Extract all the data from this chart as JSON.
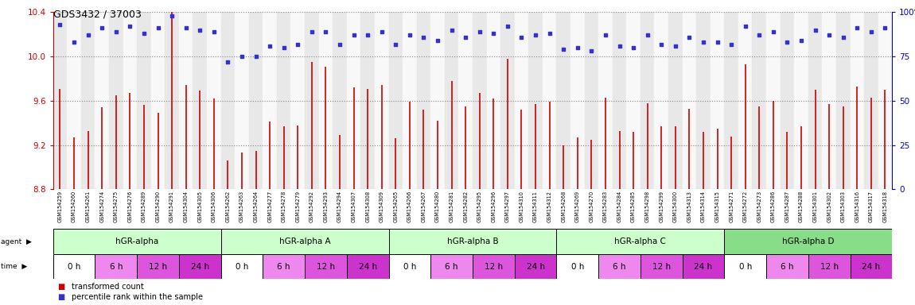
{
  "title": "GDS3432 / 37003",
  "xlabels": [
    "GSM154259",
    "GSM154260",
    "GSM154261",
    "GSM154274",
    "GSM154275",
    "GSM154276",
    "GSM154289",
    "GSM154290",
    "GSM154291",
    "GSM154304",
    "GSM154305",
    "GSM154306",
    "GSM154262",
    "GSM154263",
    "GSM154264",
    "GSM154277",
    "GSM154278",
    "GSM154279",
    "GSM154292",
    "GSM154293",
    "GSM154294",
    "GSM154307",
    "GSM154308",
    "GSM154309",
    "GSM154265",
    "GSM154266",
    "GSM154267",
    "GSM154280",
    "GSM154281",
    "GSM154282",
    "GSM154295",
    "GSM154296",
    "GSM154297",
    "GSM154310",
    "GSM154311",
    "GSM154312",
    "GSM154268",
    "GSM154269",
    "GSM154270",
    "GSM154283",
    "GSM154284",
    "GSM154285",
    "GSM154298",
    "GSM154299",
    "GSM154300",
    "GSM154313",
    "GSM154314",
    "GSM154315",
    "GSM154271",
    "GSM154272",
    "GSM154273",
    "GSM154286",
    "GSM154287",
    "GSM154288",
    "GSM154301",
    "GSM154302",
    "GSM154303",
    "GSM154316",
    "GSM154317",
    "GSM154318"
  ],
  "bar_values": [
    9.71,
    9.27,
    9.33,
    9.54,
    9.65,
    9.67,
    9.56,
    9.49,
    10.4,
    9.74,
    9.69,
    9.62,
    9.06,
    9.13,
    9.15,
    9.41,
    9.37,
    9.38,
    9.95,
    9.91,
    9.29,
    9.72,
    9.71,
    9.74,
    9.26,
    9.59,
    9.52,
    9.42,
    9.78,
    9.55,
    9.67,
    9.62,
    9.98,
    9.52,
    9.57,
    9.59,
    9.2,
    9.27,
    9.25,
    9.63,
    9.33,
    9.32,
    9.58,
    9.37,
    9.37,
    9.53,
    9.32,
    9.35,
    9.28,
    9.93,
    9.55,
    9.6,
    9.32,
    9.37,
    9.7,
    9.57,
    9.55,
    9.73,
    9.63,
    9.7
  ],
  "percentile_values": [
    93,
    83,
    87,
    91,
    89,
    92,
    88,
    91,
    98,
    91,
    90,
    89,
    72,
    75,
    75,
    81,
    80,
    82,
    89,
    89,
    82,
    87,
    87,
    89,
    82,
    87,
    86,
    84,
    90,
    86,
    89,
    88,
    92,
    86,
    87,
    88,
    79,
    80,
    78,
    87,
    81,
    80,
    87,
    82,
    81,
    86,
    83,
    83,
    82,
    92,
    87,
    89,
    83,
    84,
    90,
    87,
    86,
    91,
    89,
    91
  ],
  "ymin": 8.8,
  "ymax": 10.4,
  "ylim_left": [
    8.8,
    10.4
  ],
  "ylim_right": [
    0,
    100
  ],
  "yticks_left": [
    8.8,
    9.2,
    9.6,
    10.0,
    10.4
  ],
  "yticks_right": [
    0,
    25,
    50,
    75,
    100
  ],
  "bar_color": "#cc0000",
  "dot_color": "#3333cc",
  "agent_groups": [
    {
      "label": "hGR-alpha",
      "start": 0,
      "end": 12,
      "color": "#ccffcc"
    },
    {
      "label": "hGR-alpha A",
      "start": 12,
      "end": 24,
      "color": "#ccffcc"
    },
    {
      "label": "hGR-alpha B",
      "start": 24,
      "end": 36,
      "color": "#ccffcc"
    },
    {
      "label": "hGR-alpha C",
      "start": 36,
      "end": 48,
      "color": "#ccffcc"
    },
    {
      "label": "hGR-alpha D",
      "start": 48,
      "end": 60,
      "color": "#88dd88"
    }
  ],
  "time_label_list": [
    "0 h",
    "6 h",
    "12 h",
    "24 h"
  ],
  "time_colors_list": [
    "#ffffff",
    "#ee88ee",
    "#dd55dd",
    "#cc33cc"
  ],
  "bg_color": "#ffffff",
  "plot_bg_color": "#ffffff",
  "grid_color": "#888888",
  "left_axis_color": "#cc0000",
  "right_axis_color": "#0000cc"
}
